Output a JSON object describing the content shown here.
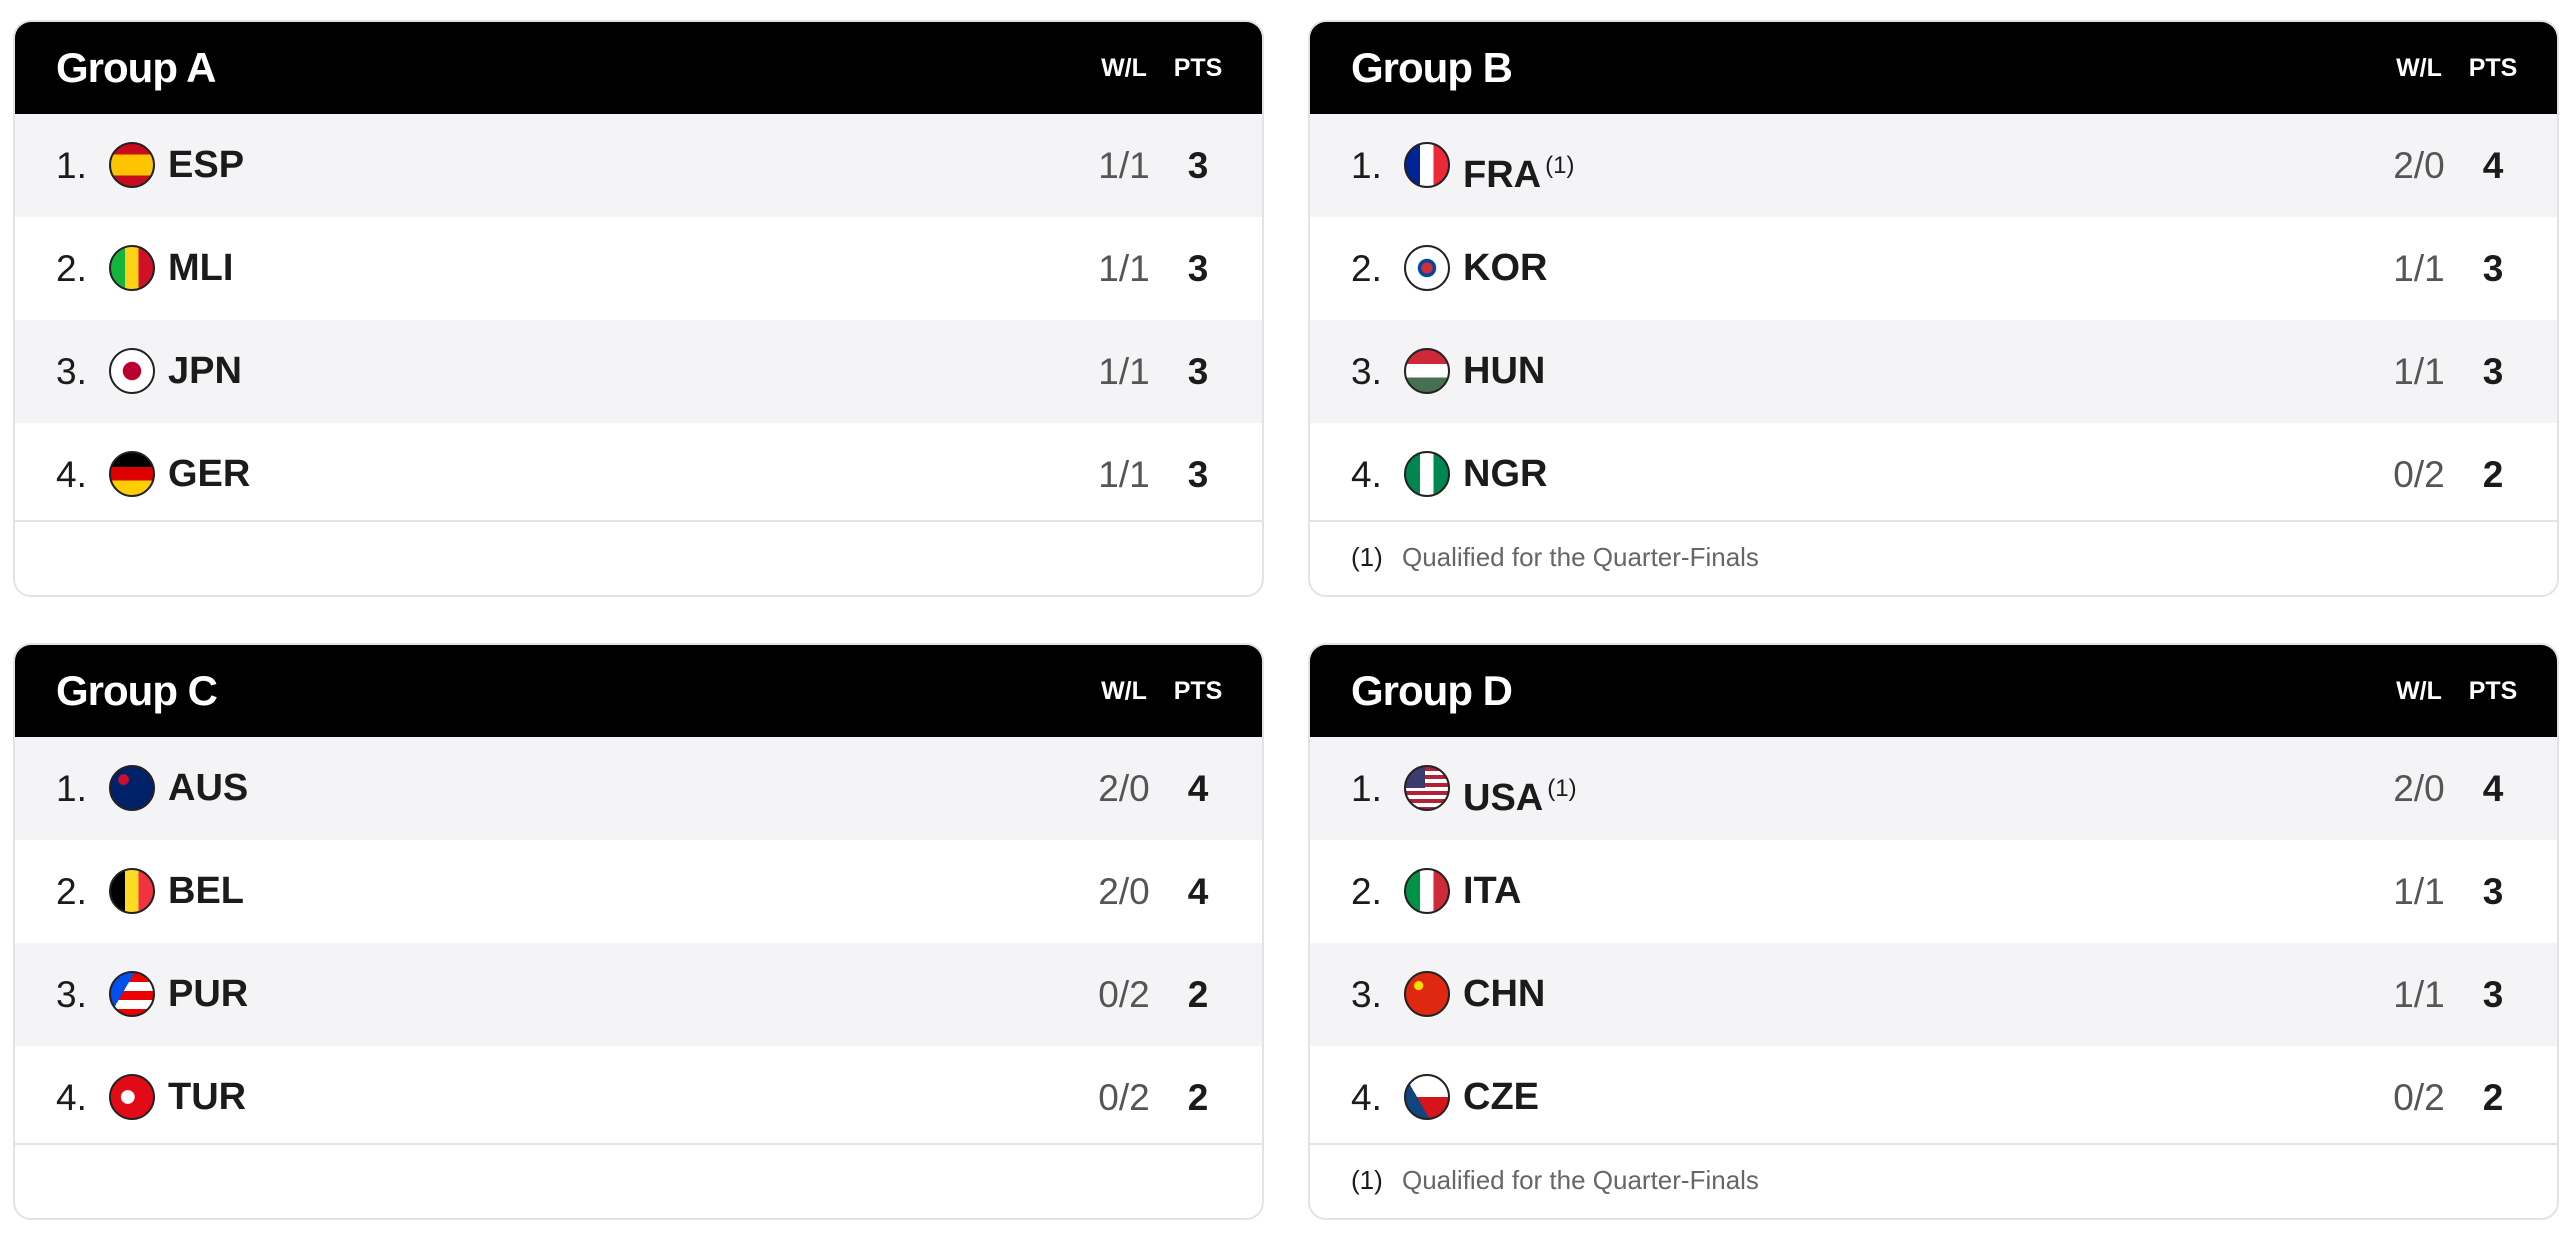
{
  "groups": [
    {
      "title": "Group A",
      "columns": [
        "W/L",
        "PTS"
      ],
      "rows": [
        {
          "rank": "1.",
          "team": "ESP",
          "wl": "1/1",
          "pts": 3
        },
        {
          "rank": "2.",
          "team": "MLI",
          "wl": "1/1",
          "pts": 3
        },
        {
          "rank": "3.",
          "team": "JPN",
          "wl": "1/1",
          "pts": 3
        },
        {
          "rank": "4.",
          "team": "GER",
          "wl": "1/1",
          "pts": 3
        }
      ]
    },
    {
      "title": "Group B",
      "columns": [
        "W/L",
        "PTS"
      ],
      "rows": [
        {
          "rank": "1.",
          "team": "FRA",
          "note": "(1)",
          "wl": "2/0",
          "pts": 4
        },
        {
          "rank": "2.",
          "team": "KOR",
          "wl": "1/1",
          "pts": 3
        },
        {
          "rank": "3.",
          "team": "HUN",
          "wl": "1/1",
          "pts": 3
        },
        {
          "rank": "4.",
          "team": "NGR",
          "wl": "0/2",
          "pts": 2
        }
      ],
      "footnote": {
        "marker": "(1)",
        "text": "Qualified for the Quarter-Finals"
      }
    },
    {
      "title": "Group C",
      "columns": [
        "W/L",
        "PTS"
      ],
      "rows": [
        {
          "rank": "1.",
          "team": "AUS",
          "wl": "2/0",
          "pts": 4
        },
        {
          "rank": "2.",
          "team": "BEL",
          "wl": "2/0",
          "pts": 4
        },
        {
          "rank": "3.",
          "team": "PUR",
          "wl": "0/2",
          "pts": 2
        },
        {
          "rank": "4.",
          "team": "TUR",
          "wl": "0/2",
          "pts": 2
        }
      ]
    },
    {
      "title": "Group D",
      "columns": [
        "W/L",
        "PTS"
      ],
      "rows": [
        {
          "rank": "1.",
          "team": "USA",
          "note": "(1)",
          "wl": "2/0",
          "pts": 4
        },
        {
          "rank": "2.",
          "team": "ITA",
          "wl": "1/1",
          "pts": 3
        },
        {
          "rank": "3.",
          "team": "CHN",
          "wl": "1/1",
          "pts": 3
        },
        {
          "rank": "4.",
          "team": "CZE",
          "wl": "0/2",
          "pts": 2
        }
      ],
      "footnote": {
        "marker": "(1)",
        "text": "Qualified for the Quarter-Finals"
      }
    }
  ]
}
